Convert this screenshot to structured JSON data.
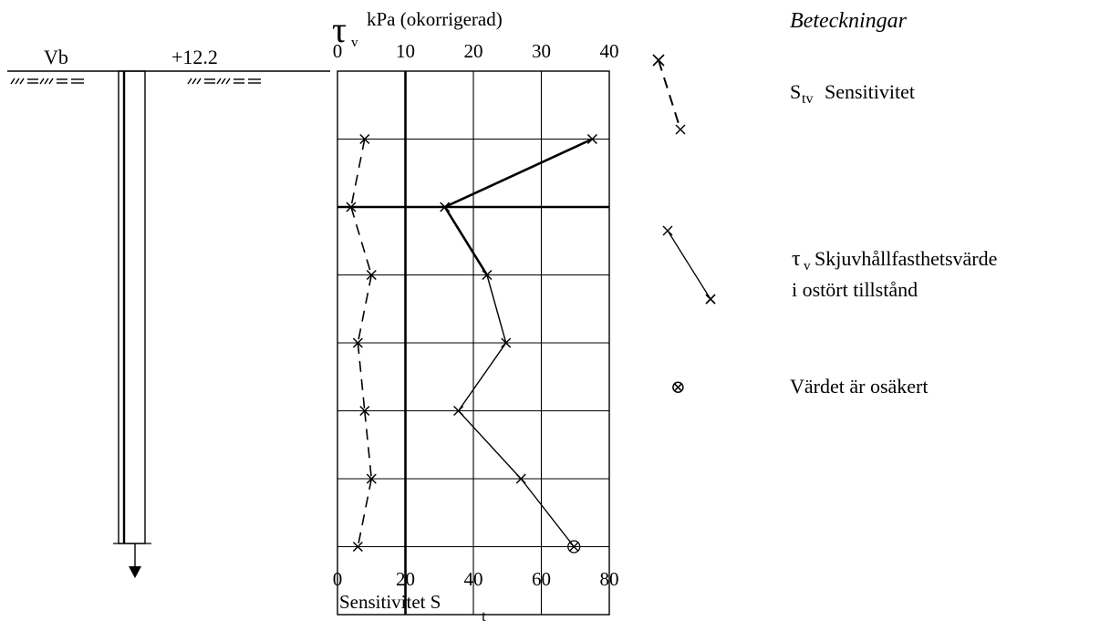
{
  "borehole": {
    "label": "Vb",
    "elevation": "+12.2"
  },
  "legend": {
    "title": "Beteckningar",
    "sensitivity": {
      "symbol": "S",
      "subscript": "tv",
      "label": "Sensitivitet"
    },
    "shear_strength": {
      "symbol": "τ",
      "subscript": "v",
      "line1": "Skjuvhållfasthetsvärde",
      "line2": "i ostört tillstånd"
    },
    "uncertain": {
      "symbol": "⊗",
      "label": "Värdet är osäkert"
    }
  },
  "chart_data": {
    "type": "line",
    "top_axis": {
      "symbol": "τ",
      "subscript": "v",
      "label": "kPa (okorrigerad)",
      "ticks": [
        0,
        10,
        20,
        30,
        40
      ],
      "range": [
        0,
        40
      ]
    },
    "bottom_axis": {
      "label": "Sensitivitet S",
      "subscript": "t",
      "ticks": [
        0,
        20,
        40,
        60,
        80
      ],
      "range": [
        0,
        80
      ]
    },
    "depth_levels": 8,
    "series": [
      {
        "axis": "top",
        "style": "solid",
        "points": [
          {
            "level": 1,
            "value": 37.5
          },
          {
            "level": 2,
            "value": 15.8
          },
          {
            "level": 3,
            "value": 22.0
          },
          {
            "level": 4,
            "value": 24.8
          },
          {
            "level": 5,
            "value": 17.8
          },
          {
            "level": 6,
            "value": 27.0
          },
          {
            "level": 7,
            "value": 34.8,
            "uncertain": true
          }
        ]
      },
      {
        "axis": "bottom",
        "style": "dashed",
        "points": [
          {
            "level": 1,
            "value": 8
          },
          {
            "level": 2,
            "value": 4
          },
          {
            "level": 3,
            "value": 10
          },
          {
            "level": 4,
            "value": 6
          },
          {
            "level": 5,
            "value": 8
          },
          {
            "level": 6,
            "value": 10
          },
          {
            "level": 7,
            "value": 6
          }
        ]
      }
    ]
  }
}
